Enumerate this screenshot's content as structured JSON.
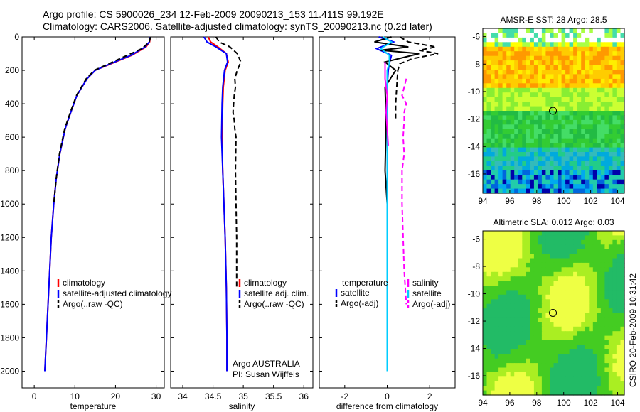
{
  "title_line1": "Argo profile: CS 5900026_234 12-Feb-2009 20090213_153 11.411S 99.192E",
  "title_line2": "Climatology: CARS2006. Satellite-adjusted climatology: synTS_20090213.nc (0.2d later)",
  "side_stamp": "CSIRO 20-Feb-2009 10:31:42",
  "colors": {
    "climatology": "#ff0000",
    "satellite": "#0000ff",
    "argo": "#000000",
    "salinity_diff": "#ff00ff",
    "salinity_sat": "#00ccff"
  },
  "chart_data": [
    {
      "type": "line",
      "id": "temperature",
      "xlabel": "temperature",
      "xlim": [
        -3,
        32
      ],
      "xticks": [
        0,
        10,
        20,
        30
      ],
      "ylim": [
        0,
        2100
      ],
      "yticks": [
        0,
        200,
        400,
        600,
        800,
        1000,
        1200,
        1400,
        1600,
        1800,
        2000
      ],
      "y_reversed": true,
      "legend": [
        "climatology",
        "satellite-adjusted climatology",
        "Argo(..raw -QC)"
      ],
      "series": [
        {
          "name": "climatology",
          "color": "#ff0000",
          "dash": false,
          "x": [
            28.6,
            28.4,
            27.5,
            24,
            19,
            15,
            13,
            10.5,
            9,
            7.6,
            6.3,
            5.4,
            4.8,
            4.2,
            3.6,
            3.0,
            2.6
          ],
          "y": [
            0,
            30,
            60,
            110,
            160,
            200,
            250,
            350,
            450,
            550,
            700,
            850,
            1000,
            1200,
            1500,
            1800,
            2000
          ]
        },
        {
          "name": "satellite-adjusted climatology",
          "color": "#0000ff",
          "dash": false,
          "x": [
            28.5,
            28.3,
            27.3,
            23.8,
            18.8,
            15,
            13,
            10.5,
            9,
            7.6,
            6.3,
            5.4,
            4.8,
            4.2,
            3.6,
            3.0,
            2.6
          ],
          "y": [
            0,
            30,
            60,
            110,
            160,
            200,
            250,
            350,
            450,
            550,
            700,
            850,
            1000,
            1200,
            1500,
            1800,
            2000
          ]
        },
        {
          "name": "Argo(..raw -QC)",
          "color": "#000000",
          "dash": true,
          "x": [
            28.6,
            28.3,
            26.5,
            22,
            17.5,
            14.8,
            12.8,
            10.4,
            8.9,
            7.5,
            6.2,
            5.4,
            4.8
          ],
          "y": [
            0,
            30,
            70,
            120,
            170,
            200,
            250,
            350,
            450,
            550,
            700,
            850,
            1000
          ]
        }
      ]
    },
    {
      "type": "line",
      "id": "salinity",
      "xlabel": "salinity",
      "xlim": [
        33.8,
        36.15
      ],
      "xticks": [
        34,
        34.5,
        35,
        35.5,
        36
      ],
      "ylim": [
        0,
        2100
      ],
      "y_reversed": true,
      "legend": [
        "climatology",
        "satellite adj. clim.",
        "Argo(..raw -QC)"
      ],
      "annotation": [
        "Argo AUSTRALIA",
        "PI: Susan Wijffels"
      ],
      "series": [
        {
          "name": "climatology",
          "color": "#ff0000",
          "dash": false,
          "x": [
            34.42,
            34.46,
            34.58,
            34.72,
            34.75,
            34.7,
            34.67,
            34.66,
            34.65,
            34.66,
            34.68,
            34.7,
            34.72,
            34.73,
            34.73
          ],
          "y": [
            0,
            30,
            60,
            100,
            150,
            200,
            300,
            400,
            600,
            800,
            1000,
            1200,
            1500,
            1800,
            2000
          ]
        },
        {
          "name": "satellite adj. clim.",
          "color": "#0000ff",
          "dash": false,
          "x": [
            34.35,
            34.4,
            34.55,
            34.72,
            34.74,
            34.69,
            34.66,
            34.65,
            34.64,
            34.66,
            34.68,
            34.7,
            34.72,
            34.73,
            34.73
          ],
          "y": [
            0,
            30,
            60,
            100,
            150,
            200,
            300,
            400,
            600,
            800,
            1000,
            1200,
            1500,
            1800,
            2000
          ]
        },
        {
          "name": "Argo(..raw -QC)",
          "color": "#000000",
          "dash": true,
          "x": [
            34.55,
            34.6,
            34.78,
            34.9,
            34.96,
            34.9,
            34.86,
            34.87,
            34.85,
            34.84,
            34.83,
            34.85,
            34.86,
            34.88,
            34.87,
            34.88,
            34.89,
            34.89
          ],
          "y": [
            0,
            30,
            60,
            100,
            150,
            200,
            250,
            300,
            350,
            400,
            450,
            500,
            550,
            600,
            800,
            1000,
            1200,
            1500
          ]
        }
      ]
    },
    {
      "type": "line",
      "id": "difference",
      "xlabel": "difference from climatology",
      "xlim": [
        -3.2,
        3.2
      ],
      "xticks": [
        -2,
        0,
        2
      ],
      "ylim": [
        0,
        2100
      ],
      "y_reversed": true,
      "legend": [
        "temperature",
        "satellite",
        "Argo(-adj)",
        "salinity",
        "satellite",
        "Argo(-adj)"
      ],
      "series": [
        {
          "name": "temperature satellite",
          "color": "#0000ff",
          "dash": false,
          "x": [
            -0.4,
            0.3,
            -0.5,
            0.2,
            0.1,
            0.05,
            0,
            0,
            0,
            0,
            0,
            0
          ],
          "y": [
            0,
            30,
            70,
            110,
            160,
            200,
            300,
            500,
            800,
            1200,
            1600,
            2000
          ]
        },
        {
          "name": "temperature Argo(-adj)",
          "color": "#000000",
          "dash": false,
          "x": [
            0.2,
            -0.6,
            1.0,
            -0.3,
            1.5,
            -0.1,
            0.4,
            -0.1,
            -0.05,
            -0.1,
            0,
            0
          ],
          "y": [
            0,
            30,
            60,
            80,
            100,
            150,
            200,
            300,
            500,
            800,
            1000,
            1500
          ]
        },
        {
          "name": "salinity satellite",
          "color": "#00ccff",
          "dash": false,
          "x": [
            -0.2,
            0.2,
            -0.3,
            0.1,
            0.1,
            0,
            0,
            0,
            0,
            0
          ],
          "y": [
            0,
            30,
            70,
            110,
            160,
            200,
            400,
            800,
            1400,
            2000
          ]
        },
        {
          "name": "salinity Argo(-adj)",
          "color": "#000000",
          "dash": true,
          "x": [
            0.6,
            1.0,
            2.3,
            1.5,
            2.4,
            1.2,
            0.6,
            0.5,
            0.45,
            0.4,
            0.4
          ],
          "y": [
            0,
            30,
            60,
            80,
            100,
            130,
            160,
            200,
            300,
            400,
            500
          ]
        },
        {
          "name": "salinity diff",
          "color": "#ff00ff",
          "dash": true,
          "x": [
            0.9,
            0.8,
            0.7,
            0.9,
            0.8,
            0.8,
            0.75,
            0.8,
            0.7,
            0.7,
            0.75,
            0.8,
            0.9
          ],
          "y": [
            250,
            300,
            350,
            400,
            450,
            500,
            600,
            700,
            800,
            1000,
            1200,
            1400,
            1600
          ]
        },
        {
          "name": "salinity diff solid",
          "color": "#ff00ff",
          "dash": false,
          "x": [
            -0.1,
            -0.1,
            0,
            -0.05,
            0.0,
            0.05
          ],
          "y": [
            150,
            250,
            350,
            450,
            550,
            650
          ]
        }
      ]
    },
    {
      "type": "heatmap",
      "id": "sst-map",
      "title": "AMSR-E SST: 28 Argo: 28.5",
      "xlim": [
        94,
        104.5
      ],
      "xticks": [
        94,
        96,
        98,
        100,
        102,
        104
      ],
      "ylim": [
        -17.4,
        -5.4
      ],
      "yticks": [
        -16,
        -14,
        -12,
        -10,
        -8,
        -6
      ],
      "marker": {
        "lon": 99.2,
        "lat": -11.4
      }
    },
    {
      "type": "heatmap",
      "id": "sla-map",
      "title": "Altimetric SLA: 0.012 Argo: 0.03",
      "xlim": [
        94,
        104.5
      ],
      "xticks": [
        94,
        96,
        98,
        100,
        102,
        104
      ],
      "ylim": [
        -17.4,
        -5.4
      ],
      "yticks": [
        -16,
        -14,
        -12,
        -10,
        -8,
        -6
      ],
      "marker": {
        "lon": 99.2,
        "lat": -11.4
      }
    }
  ],
  "temperature_legend": [
    "climatology",
    "satellite-adjusted climatology",
    "Argo(..raw -QC)"
  ],
  "salinity_legend": [
    "climatology",
    "satellite adj. clim.",
    "Argo(..raw -QC)"
  ],
  "diff_legend_left": [
    "temperature",
    "satellite",
    "Argo(-adj)"
  ],
  "diff_legend_right": [
    "salinity",
    "satellite",
    "Argo(-adj)"
  ],
  "salinity_note": [
    "Argo AUSTRALIA",
    "PI: Susan Wijffels"
  ]
}
